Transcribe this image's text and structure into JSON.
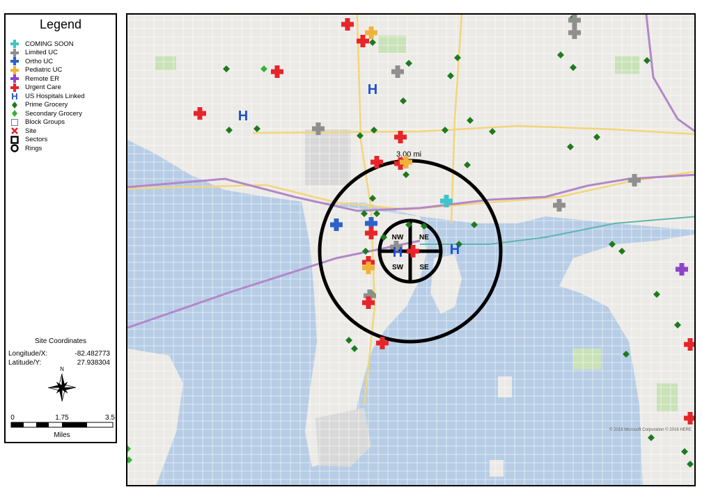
{
  "legend": {
    "title": "Legend",
    "items": [
      {
        "label": "COMING SOON",
        "symbol": "cross",
        "color": "#3dc6c9"
      },
      {
        "label": "Limited UC",
        "symbol": "cross",
        "color": "#8f8f8f"
      },
      {
        "label": "Ortho UC",
        "symbol": "cross",
        "color": "#2d62c9"
      },
      {
        "label": "Pediatric UC",
        "symbol": "cross",
        "color": "#f2b23a"
      },
      {
        "label": "Remote ER",
        "symbol": "cross",
        "color": "#8e44c9"
      },
      {
        "label": "Urgent Care",
        "symbol": "cross",
        "color": "#e6252a"
      },
      {
        "label": "US Hospitals Linked",
        "symbol": "H",
        "color": "#1f4fd1"
      },
      {
        "label": "Prime Grocery",
        "symbol": "diamond",
        "color": "#1e7a1e"
      },
      {
        "label": "Secondary Grocery",
        "symbol": "diamond",
        "color": "#35b335"
      },
      {
        "label": "Block Groups",
        "symbol": "square-empty",
        "color": "#777777"
      },
      {
        "label": "Site",
        "symbol": "x",
        "color": "#e6252a"
      },
      {
        "label": "Sectors",
        "symbol": "square-thick",
        "color": "#000000"
      },
      {
        "label": "Rings",
        "symbol": "ring",
        "color": "#000000"
      }
    ]
  },
  "site_coordinates": {
    "title": "Site Coordinates",
    "longitude_label": "Longitude/X:",
    "longitude_value": "-82.482773",
    "latitude_label": "Latitude/Y:",
    "latitude_value": "27.938304"
  },
  "compass": {
    "north_label": "N"
  },
  "scale_bar": {
    "ticks": [
      "0",
      "1.75",
      "3.5"
    ],
    "unit": "Miles"
  },
  "map": {
    "ring_label": "3.00 mi",
    "sectors": [
      "NW",
      "NE",
      "SW",
      "SE"
    ],
    "copyright": "© 2016 Microsoft Corporation © 2016 HERE"
  }
}
